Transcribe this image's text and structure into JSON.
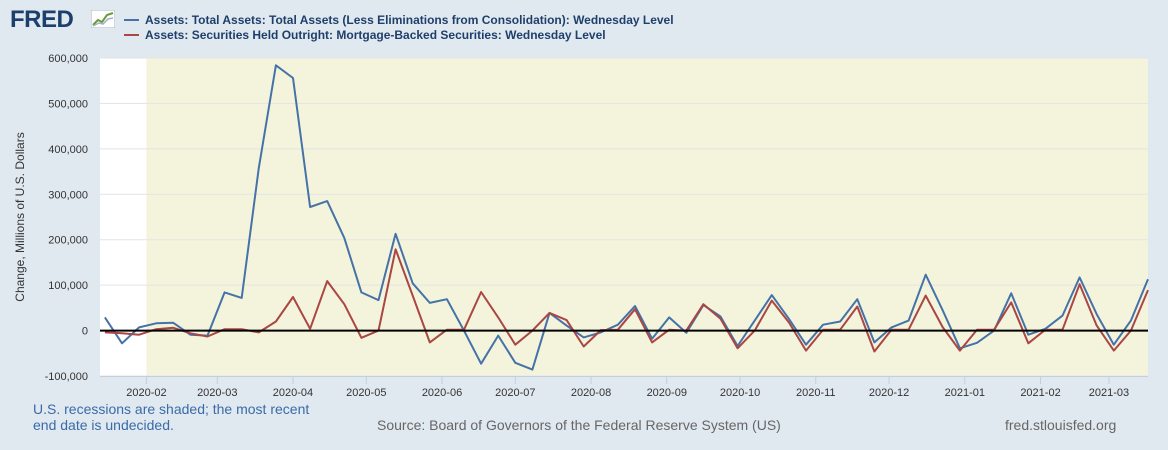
{
  "header": {
    "logo_text": "FRED",
    "logo_icon": "chart-line-icon"
  },
  "footer": {
    "note": "U.S. recessions are shaded; the most recent end date is undecided.",
    "source": "Source: Board of Governors of the Federal Reserve System (US)",
    "site": "fred.stlouisfed.org"
  },
  "colors": {
    "background": "#e1e9f0",
    "recession_shade": "#f4f4dc",
    "series_1": "#4572a7",
    "series_2": "#aa4643",
    "zero_line": "#000000"
  },
  "chart_data": {
    "type": "line",
    "title": "",
    "xlabel": "",
    "ylabel": "Change, Millions of U.S. Dollars",
    "xlim": [
      "2020-01-13",
      "2021-03-17"
    ],
    "ylim": [
      -100000,
      600000
    ],
    "yticks": [
      -100000,
      0,
      100000,
      200000,
      300000,
      400000,
      500000,
      600000
    ],
    "ytick_labels": [
      "-100,000",
      "0",
      "100,000",
      "200,000",
      "300,000",
      "400,000",
      "500,000",
      "600,000"
    ],
    "xticks": [
      "2020-02-01",
      "2020-03-01",
      "2020-04-01",
      "2020-05-01",
      "2020-06-01",
      "2020-07-01",
      "2020-08-01",
      "2020-09-01",
      "2020-10-01",
      "2020-11-01",
      "2020-12-01",
      "2021-01-01",
      "2021-02-01",
      "2021-03-01"
    ],
    "xtick_labels": [
      "2020-02",
      "2020-03",
      "2020-04",
      "2020-05",
      "2020-06",
      "2020-07",
      "2020-08",
      "2020-09",
      "2020-10",
      "2020-11",
      "2020-12",
      "2021-01",
      "2021-02",
      "2021-03"
    ],
    "grid": true,
    "legend": "top",
    "recession_shading": {
      "start": "2020-02-01",
      "end": "2021-03-17"
    },
    "x": [
      "2020-01-15",
      "2020-01-22",
      "2020-01-29",
      "2020-02-05",
      "2020-02-12",
      "2020-02-19",
      "2020-02-26",
      "2020-03-04",
      "2020-03-11",
      "2020-03-18",
      "2020-03-25",
      "2020-04-01",
      "2020-04-08",
      "2020-04-15",
      "2020-04-22",
      "2020-04-29",
      "2020-05-06",
      "2020-05-13",
      "2020-05-20",
      "2020-05-27",
      "2020-06-03",
      "2020-06-10",
      "2020-06-17",
      "2020-06-24",
      "2020-07-01",
      "2020-07-08",
      "2020-07-15",
      "2020-07-22",
      "2020-07-29",
      "2020-08-05",
      "2020-08-12",
      "2020-08-19",
      "2020-08-26",
      "2020-09-02",
      "2020-09-09",
      "2020-09-16",
      "2020-09-23",
      "2020-09-30",
      "2020-10-07",
      "2020-10-14",
      "2020-10-21",
      "2020-10-28",
      "2020-11-04",
      "2020-11-11",
      "2020-11-18",
      "2020-11-25",
      "2020-12-02",
      "2020-12-09",
      "2020-12-16",
      "2020-12-23",
      "2020-12-30",
      "2021-01-06",
      "2021-01-13",
      "2021-01-20",
      "2021-01-27",
      "2021-02-03",
      "2021-02-10",
      "2021-02-17",
      "2021-02-24",
      "2021-03-03",
      "2021-03-10",
      "2021-03-17"
    ],
    "series": [
      {
        "name": "Assets: Total Assets: Total Assets (Less Eliminations from Consolidation): Wednesday Level",
        "color": "#4572a7",
        "values": [
          29000,
          -28000,
          7000,
          16000,
          17000,
          -9000,
          -11000,
          84000,
          72000,
          358000,
          584000,
          556000,
          272000,
          285000,
          204000,
          84000,
          67000,
          213000,
          104000,
          61000,
          69000,
          0,
          -73000,
          -11000,
          -71000,
          -86000,
          39000,
          11000,
          -15000,
          -4000,
          13000,
          54000,
          -18000,
          29000,
          -5000,
          56000,
          31000,
          -34000,
          22000,
          78000,
          26000,
          -31000,
          13000,
          20000,
          69000,
          -26000,
          7000,
          22000,
          123000,
          44000,
          -39000,
          -27000,
          0,
          82000,
          -9000,
          4000,
          33000,
          117000,
          36000,
          -31000,
          22000,
          113000
        ]
      },
      {
        "name": "Assets: Securities Held Outright: Mortgage-Backed Securities: Wednesday Level",
        "color": "#aa4643",
        "values": [
          -4000,
          -6000,
          -9000,
          3000,
          6000,
          -6000,
          -13000,
          3000,
          3000,
          -4000,
          20000,
          74000,
          4000,
          109000,
          58000,
          -16000,
          0,
          179000,
          77000,
          -26000,
          2000,
          2000,
          85000,
          29000,
          -31000,
          0,
          39000,
          23000,
          -35000,
          1000,
          2000,
          47000,
          -26000,
          2000,
          0,
          58000,
          26000,
          -39000,
          0,
          66000,
          18000,
          -44000,
          2000,
          2000,
          53000,
          -46000,
          2000,
          2000,
          77000,
          7000,
          -44000,
          2000,
          2000,
          62000,
          -28000,
          2000,
          2000,
          102000,
          11000,
          -44000,
          0,
          89000
        ]
      }
    ]
  }
}
